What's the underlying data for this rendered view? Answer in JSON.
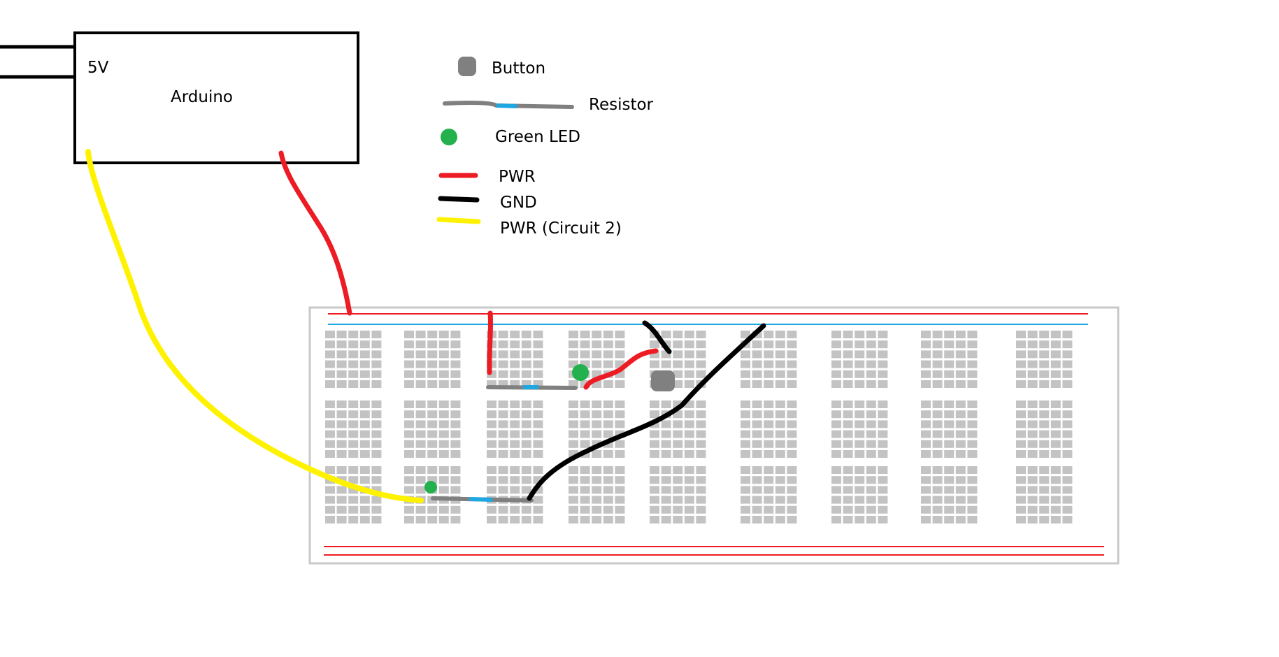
{
  "arduino": {
    "label": "Arduino",
    "pin_label": "5V"
  },
  "legend": {
    "items": [
      {
        "key": "button",
        "label": "Button",
        "color": "#808080"
      },
      {
        "key": "resistor",
        "label": "Resistor",
        "color": "#808080",
        "band_color": "#1ea7e1"
      },
      {
        "key": "green-led",
        "label": "Green LED",
        "color": "#22b14c"
      },
      {
        "key": "pwr",
        "label": "PWR",
        "color": "#ed1c24"
      },
      {
        "key": "gnd",
        "label": "GND",
        "color": "#000000"
      },
      {
        "key": "pwr-circuit-2",
        "label": "PWR (Circuit 2)",
        "color": "#fff200"
      }
    ]
  },
  "colors": {
    "pwr_wire": "#ed1c24",
    "gnd_wire": "#000000",
    "pwr2_wire": "#fff200",
    "breadboard_border": "#c8c8c8",
    "breadboard_hole": "#c3c3c3",
    "rail_red": "#ed1c24",
    "rail_blue": "#1ea7e1",
    "button": "#808080",
    "resistor_body": "#808080",
    "resistor_band": "#1ea7e1",
    "led": "#22b14c"
  }
}
